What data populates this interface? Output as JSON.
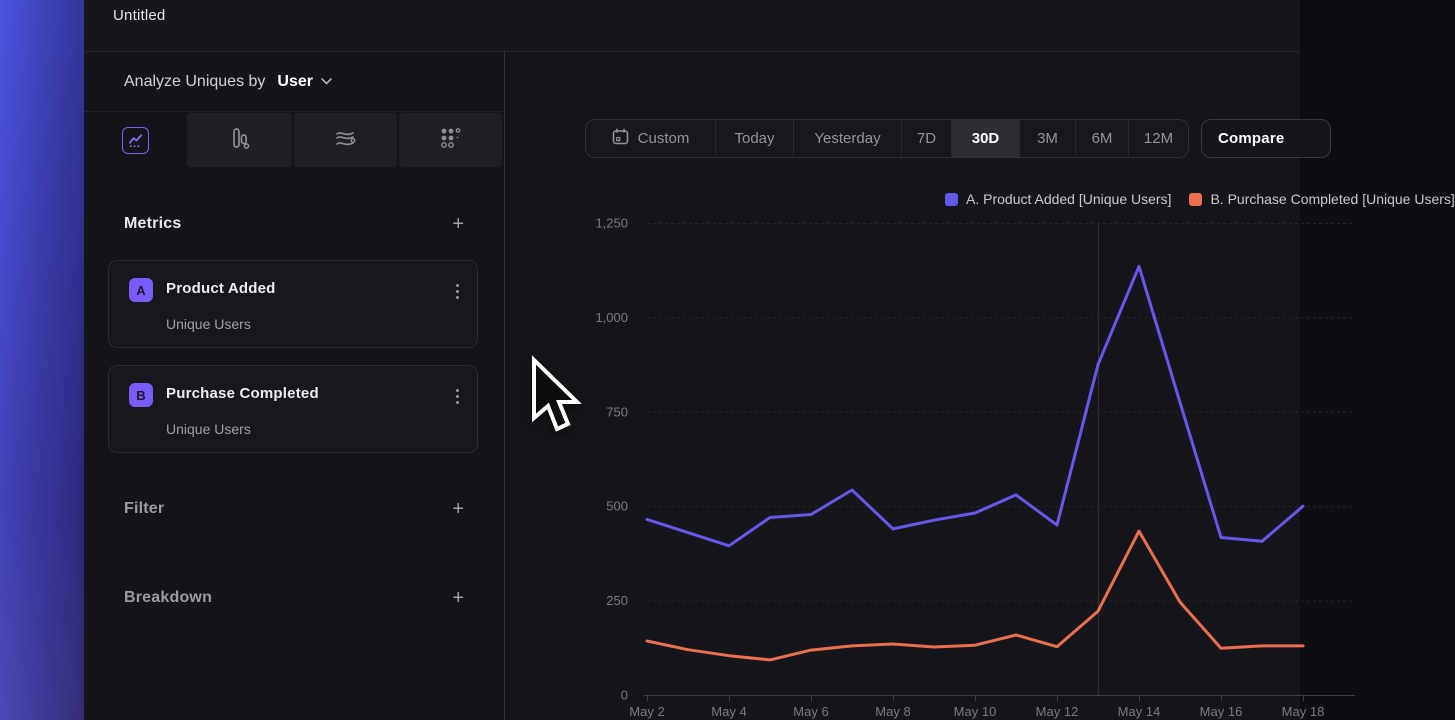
{
  "window": {
    "title": "Untitled"
  },
  "sidebar": {
    "analyze": {
      "label": "Analyze Uniques by",
      "value": "User",
      "dropdown_icon": "chevron-down-icon"
    },
    "chart_type_tabs": [
      {
        "icon": "line-chart-icon",
        "selected": true
      },
      {
        "icon": "bar-chart-icon",
        "selected": false
      },
      {
        "icon": "flow-icon",
        "selected": false
      },
      {
        "icon": "dot-grid-icon",
        "selected": false
      }
    ],
    "metrics": {
      "heading": "Metrics",
      "add_label": "+",
      "items": [
        {
          "badge": "A",
          "name": "Product Added",
          "measure": "Unique Users",
          "menu_icon": "kebab-menu-icon"
        },
        {
          "badge": "B",
          "name": "Purchase Completed",
          "measure": "Unique Users",
          "menu_icon": "kebab-menu-icon"
        }
      ]
    },
    "filter": {
      "heading": "Filter",
      "add_label": "+"
    },
    "breakdown": {
      "heading": "Breakdown",
      "add_label": "+"
    }
  },
  "toolbar": {
    "date_ranges": [
      "Custom",
      "Today",
      "Yesterday",
      "7D",
      "30D",
      "3M",
      "6M",
      "12M"
    ],
    "selected_range": "30D",
    "custom_icon": "calendar-icon",
    "compare_label": "Compare"
  },
  "chart_data": {
    "type": "line",
    "x": [
      "May 2",
      "May 3",
      "May 4",
      "May 5",
      "May 6",
      "May 7",
      "May 8",
      "May 9",
      "May 10",
      "May 11",
      "May 12",
      "May 13",
      "May 14",
      "May 15",
      "May 16",
      "May 17",
      "May 18"
    ],
    "x_tick_labels": [
      "May 2",
      "May 4",
      "May 6",
      "May 8",
      "May 10",
      "May 12",
      "May 14",
      "May 16",
      "May 18"
    ],
    "series": [
      {
        "name": "A. Product Added [Unique Users]",
        "color": "#6459ea",
        "values": [
          465,
          430,
          395,
          470,
          478,
          543,
          440,
          463,
          482,
          530,
          450,
          875,
          1135,
          775,
          417,
          407,
          500
        ]
      },
      {
        "name": "B. Purchase Completed [Unique Users]",
        "color": "#ec6f4e",
        "values": [
          143,
          120,
          104,
          93,
          119,
          130,
          135,
          127,
          132,
          159,
          128,
          222,
          434,
          246,
          124,
          130,
          130
        ]
      }
    ],
    "ylim": [
      0,
      1250
    ],
    "yticks": [
      0,
      250,
      500,
      750,
      1000,
      1250
    ],
    "ytick_labels": [
      "0",
      "250",
      "500",
      "750",
      "1,000",
      "1,250"
    ],
    "grid": "horizontal-dashed",
    "legend_position": "top-right",
    "reference_line_x": "May 13"
  },
  "colors": {
    "accent_purple": "#7b5cfb",
    "series_purple": "#6459ea",
    "series_orange": "#ec6f4e",
    "background": "#14151a",
    "panel_border": "#2c2d33"
  }
}
